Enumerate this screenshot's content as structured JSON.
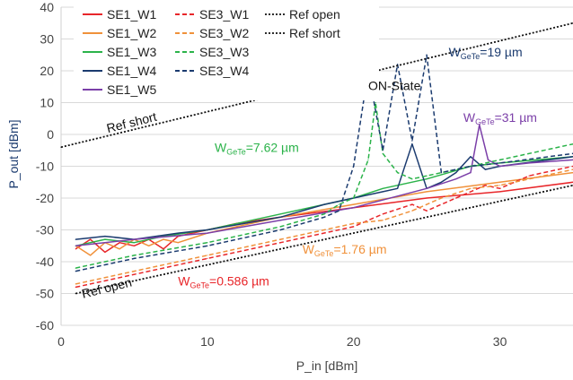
{
  "chart_data": {
    "type": "line",
    "title": "",
    "xlabel": "P_in [dBm]",
    "ylabel": "P_out [dBm]",
    "xlim": [
      0,
      35
    ],
    "ylim": [
      -60,
      40
    ],
    "x_ticks": [
      0,
      10,
      20,
      30
    ],
    "y_ticks": [
      -60,
      -50,
      -40,
      -30,
      -20,
      -10,
      0,
      10,
      20,
      30,
      40
    ],
    "grid": "horizontal",
    "legend_position": "top-left",
    "series": [
      {
        "name": "SE1_W1",
        "color": "#e8262a",
        "dash": "solid",
        "points": [
          [
            1,
            -36
          ],
          [
            2,
            -33
          ],
          [
            3,
            -37
          ],
          [
            4,
            -34
          ],
          [
            5,
            -35
          ],
          [
            6,
            -33
          ],
          [
            7,
            -36
          ],
          [
            8,
            -32
          ],
          [
            10,
            -30
          ],
          [
            12,
            -28
          ],
          [
            15,
            -26
          ],
          [
            20,
            -23
          ],
          [
            25,
            -20
          ],
          [
            30,
            -18
          ],
          [
            35,
            -15
          ]
        ]
      },
      {
        "name": "SE1_W2",
        "color": "#f0913a",
        "dash": "solid",
        "points": [
          [
            1,
            -35
          ],
          [
            2,
            -38
          ],
          [
            3,
            -34
          ],
          [
            4,
            -36
          ],
          [
            5,
            -33
          ],
          [
            6,
            -35
          ],
          [
            7,
            -33
          ],
          [
            8,
            -34
          ],
          [
            10,
            -31
          ],
          [
            12,
            -29
          ],
          [
            15,
            -26
          ],
          [
            20,
            -22
          ],
          [
            25,
            -18
          ],
          [
            30,
            -15
          ],
          [
            35,
            -12
          ]
        ]
      },
      {
        "name": "SE1_W3",
        "color": "#2bb34a",
        "dash": "solid",
        "points": [
          [
            1,
            -35
          ],
          [
            3,
            -33
          ],
          [
            5,
            -34
          ],
          [
            7,
            -32
          ],
          [
            10,
            -30
          ],
          [
            15,
            -25
          ],
          [
            18,
            -22
          ],
          [
            20,
            -20
          ],
          [
            22,
            -17
          ],
          [
            25,
            -14
          ],
          [
            28,
            -10
          ],
          [
            30,
            -9
          ],
          [
            35,
            -7
          ]
        ]
      },
      {
        "name": "SE1_W4",
        "color": "#1b3b6f",
        "dash": "solid",
        "points": [
          [
            1,
            -33
          ],
          [
            3,
            -32
          ],
          [
            5,
            -33
          ],
          [
            8,
            -31
          ],
          [
            10,
            -30
          ],
          [
            15,
            -26
          ],
          [
            18,
            -22
          ],
          [
            20,
            -20
          ],
          [
            22,
            -18
          ],
          [
            23,
            -17
          ],
          [
            24,
            -3
          ],
          [
            25,
            -17
          ],
          [
            26,
            -15
          ],
          [
            27,
            -12
          ],
          [
            28,
            -7
          ],
          [
            29,
            -11
          ],
          [
            30,
            -10
          ],
          [
            35,
            -7
          ]
        ]
      },
      {
        "name": "SE1_W5",
        "color": "#7b3fa8",
        "dash": "solid",
        "points": [
          [
            1,
            -35
          ],
          [
            5,
            -33
          ],
          [
            10,
            -31
          ],
          [
            15,
            -27
          ],
          [
            20,
            -23
          ],
          [
            25,
            -17
          ],
          [
            27,
            -14
          ],
          [
            28,
            -12
          ],
          [
            28.6,
            3
          ],
          [
            29.2,
            -8
          ],
          [
            30,
            -10
          ],
          [
            32,
            -9
          ],
          [
            35,
            -8
          ]
        ]
      },
      {
        "name": "SE3_W1",
        "color": "#e8262a",
        "dash": "dashed",
        "points": [
          [
            1,
            -48
          ],
          [
            5,
            -44
          ],
          [
            10,
            -39
          ],
          [
            15,
            -34
          ],
          [
            20,
            -29
          ],
          [
            22,
            -25
          ],
          [
            24,
            -22
          ],
          [
            25,
            -24
          ],
          [
            27,
            -20
          ],
          [
            29,
            -16
          ],
          [
            30,
            -17
          ],
          [
            32,
            -13
          ],
          [
            35,
            -10
          ]
        ]
      },
      {
        "name": "SE3_W2",
        "color": "#f0913a",
        "dash": "dashed",
        "points": [
          [
            1,
            -47
          ],
          [
            5,
            -43
          ],
          [
            10,
            -38
          ],
          [
            15,
            -33
          ],
          [
            20,
            -28
          ],
          [
            22,
            -27
          ],
          [
            24,
            -24
          ],
          [
            26,
            -20
          ],
          [
            28,
            -17
          ],
          [
            30,
            -16
          ],
          [
            35,
            -11
          ]
        ]
      },
      {
        "name": "SE3_W3",
        "color": "#2bb34a",
        "dash": "dashed",
        "points": [
          [
            1,
            -42
          ],
          [
            5,
            -38
          ],
          [
            10,
            -34
          ],
          [
            15,
            -29
          ],
          [
            18,
            -25
          ],
          [
            19,
            -22
          ],
          [
            20,
            -20
          ],
          [
            21,
            -8
          ],
          [
            21.5,
            10
          ],
          [
            22,
            -6
          ],
          [
            23,
            -12
          ],
          [
            24,
            -14
          ],
          [
            25,
            -13
          ],
          [
            30,
            -8
          ],
          [
            35,
            -3
          ]
        ]
      },
      {
        "name": "SE3_W4",
        "color": "#1b3b6f",
        "dash": "dashed",
        "points": [
          [
            1,
            -43
          ],
          [
            5,
            -39
          ],
          [
            10,
            -35
          ],
          [
            15,
            -30
          ],
          [
            18,
            -26
          ],
          [
            19,
            -24
          ],
          [
            20,
            -10
          ],
          [
            21,
            20
          ],
          [
            22,
            -5
          ],
          [
            23,
            22
          ],
          [
            24,
            -2
          ],
          [
            25,
            25
          ],
          [
            26,
            -12
          ],
          [
            28,
            -10
          ],
          [
            30,
            -9
          ],
          [
            35,
            -6
          ]
        ]
      },
      {
        "name": "Ref open",
        "color": "#111111",
        "dash": "dotted",
        "points": [
          [
            1,
            -50
          ],
          [
            35,
            -16
          ]
        ]
      },
      {
        "name": "Ref short",
        "color": "#111111",
        "dash": "dotted",
        "points": [
          [
            0,
            -4
          ],
          [
            35,
            35
          ]
        ]
      }
    ],
    "annotations": [
      {
        "key": "on_state",
        "x": 21,
        "y": 14,
        "color": "#111111"
      },
      {
        "key": "w19",
        "x": 26.5,
        "y": 24.5,
        "color": "#1b3b6f"
      },
      {
        "key": "w31",
        "x": 27.5,
        "y": 4,
        "color": "#7b3fa8"
      },
      {
        "key": "w762",
        "x": 10.5,
        "y": -5.5,
        "color": "#2bb34a"
      },
      {
        "key": "w176",
        "x": 16.5,
        "y": -37.5,
        "color": "#f0913a"
      },
      {
        "key": "w0586",
        "x": 8,
        "y": -47.5,
        "color": "#e8262a"
      },
      {
        "key": "ref_short",
        "x": 3.2,
        "y": 0.5,
        "color": "#111111",
        "rotate": -14
      },
      {
        "key": "ref_open",
        "x": 1.5,
        "y": -51.5,
        "color": "#111111",
        "rotate": -14
      }
    ]
  },
  "labels": {
    "on_state": "ON-State",
    "w19": {
      "main": "W",
      "sub": "GeTe",
      "rest": "=19 µm"
    },
    "w31": {
      "main": "W",
      "sub": "GeTe",
      "rest": "=31 µm"
    },
    "w762": {
      "main": "W",
      "sub": "GeTe",
      "rest": "=7.62 µm"
    },
    "w176": {
      "main": "W",
      "sub": "GeTe",
      "rest": "=1.76 µm"
    },
    "w0586": {
      "main": "W",
      "sub": "GeTe",
      "rest": "=0.586 µm"
    },
    "ref_short": "Ref short",
    "ref_open": "Ref open"
  }
}
